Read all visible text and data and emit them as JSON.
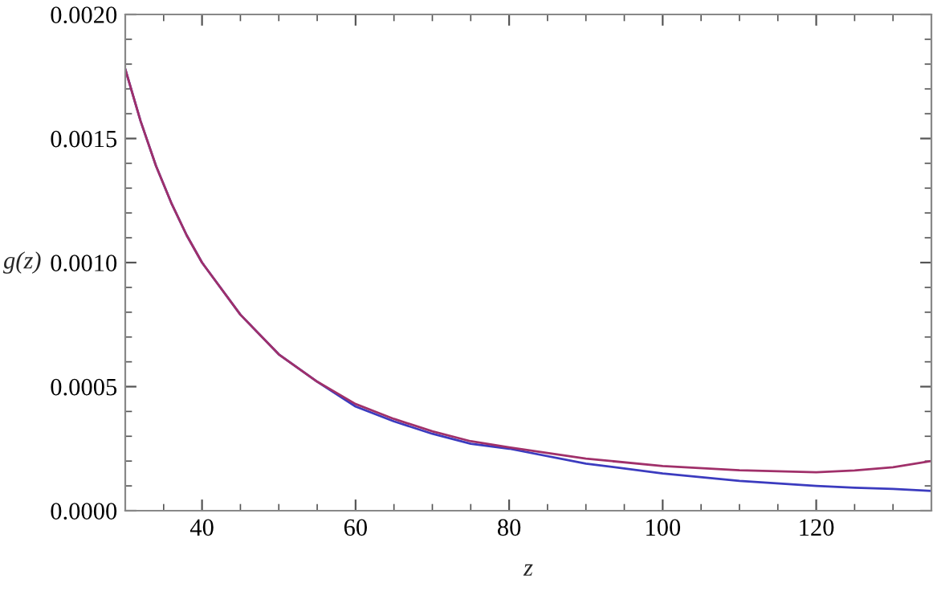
{
  "chart_data": {
    "type": "line",
    "xlabel": "z",
    "ylabel": "g(z)",
    "xlim": [
      30,
      135
    ],
    "xticks": [
      40,
      60,
      80,
      100,
      120
    ],
    "ylim": [
      0,
      0.002
    ],
    "yticks": [
      {
        "value": 0,
        "label": "0.0000"
      },
      {
        "value": 0.0005,
        "label": "0.0005"
      },
      {
        "value": 0.001,
        "label": "0.0010"
      },
      {
        "value": 0.0015,
        "label": "0.0015"
      },
      {
        "value": 0.002,
        "label": "0.0020"
      }
    ],
    "grid": false,
    "marker": "none",
    "line_style": "solid",
    "series": [
      {
        "color": "#3b3bbf",
        "x": [
          30,
          32,
          34,
          36,
          38,
          40,
          45,
          50,
          55,
          60,
          65,
          70,
          75,
          80,
          90,
          100,
          110,
          120,
          125,
          130,
          135
        ],
        "values": [
          0.00178,
          0.00157,
          0.00139,
          0.00124,
          0.00111,
          0.001,
          0.00079,
          0.00063,
          0.00052,
          0.00042,
          0.00036,
          0.00031,
          0.00027,
          0.00025,
          0.00019,
          0.00015,
          0.00012,
          0.0001,
          9.3e-05,
          8.8e-05,
          8e-05
        ]
      },
      {
        "color": "#a0306a",
        "x": [
          30,
          32,
          34,
          36,
          38,
          40,
          45,
          50,
          55,
          60,
          65,
          70,
          75,
          80,
          90,
          100,
          110,
          120,
          125,
          130,
          135
        ],
        "values": [
          0.00178,
          0.00157,
          0.00139,
          0.00124,
          0.00111,
          0.001,
          0.00079,
          0.00063,
          0.00052,
          0.00043,
          0.00037,
          0.00032,
          0.00028,
          0.000255,
          0.00021,
          0.00018,
          0.000163,
          0.000155,
          0.000162,
          0.000175,
          0.0002
        ]
      }
    ]
  }
}
